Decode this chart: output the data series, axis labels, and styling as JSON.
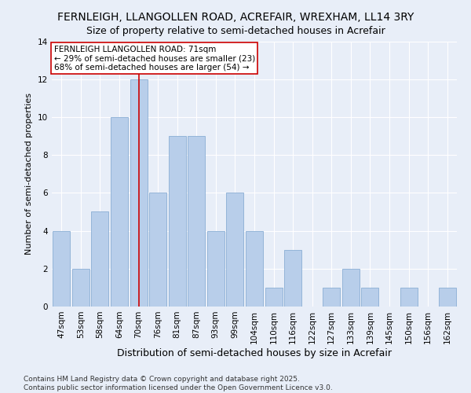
{
  "title": "FERNLEIGH, LLANGOLLEN ROAD, ACREFAIR, WREXHAM, LL14 3RY",
  "subtitle": "Size of property relative to semi-detached houses in Acrefair",
  "xlabel": "Distribution of semi-detached houses by size in Acrefair",
  "ylabel": "Number of semi-detached properties",
  "categories": [
    "47sqm",
    "53sqm",
    "58sqm",
    "64sqm",
    "70sqm",
    "76sqm",
    "81sqm",
    "87sqm",
    "93sqm",
    "99sqm",
    "104sqm",
    "110sqm",
    "116sqm",
    "122sqm",
    "127sqm",
    "133sqm",
    "139sqm",
    "145sqm",
    "150sqm",
    "156sqm",
    "162sqm"
  ],
  "values": [
    4,
    2,
    5,
    10,
    12,
    6,
    9,
    9,
    4,
    6,
    4,
    1,
    3,
    0,
    1,
    2,
    1,
    0,
    1,
    0,
    1
  ],
  "bar_color": "#b8ceea",
  "bar_edge_color": "#8aaed4",
  "highlight_index": 4,
  "highlight_color": "#cc0000",
  "ylim": [
    0,
    14
  ],
  "yticks": [
    0,
    2,
    4,
    6,
    8,
    10,
    12,
    14
  ],
  "annotation_lines": [
    "FERNLEIGH LLANGOLLEN ROAD: 71sqm",
    "← 29% of semi-detached houses are smaller (23)",
    "68% of semi-detached houses are larger (54) →"
  ],
  "footer_lines": [
    "Contains HM Land Registry data © Crown copyright and database right 2025.",
    "Contains public sector information licensed under the Open Government Licence v3.0."
  ],
  "bg_color": "#e8eef8",
  "title_fontsize": 10,
  "subtitle_fontsize": 9,
  "xlabel_fontsize": 9,
  "ylabel_fontsize": 8,
  "tick_fontsize": 7.5,
  "annotation_fontsize": 7.5,
  "footer_fontsize": 6.5
}
